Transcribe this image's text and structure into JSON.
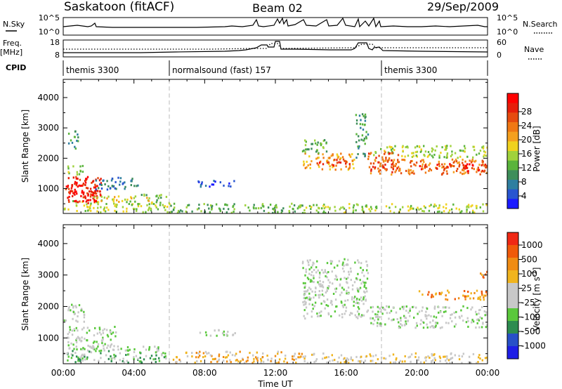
{
  "header": {
    "station": "Saskatoon (fitACF)",
    "beam": "Beam 02",
    "date": "29/Sep/2009"
  },
  "strips": {
    "nsky_label": "N.Sky",
    "nsky_ticks": [
      "10^5",
      "10^0"
    ],
    "nsearch_label": "N.Search",
    "nsearch_ticks": [
      "10^5",
      "10^0"
    ],
    "freq_label": "Freq.",
    "freq_unit": "[MHz]",
    "freq_ticks": [
      "18",
      "8"
    ],
    "nave_label": "Nave",
    "nave_ticks": [
      "60",
      "0"
    ],
    "cpid_label": "CPID",
    "cpid_segments": [
      {
        "label": "themis 3300",
        "start_hour": 0,
        "end_hour": 6
      },
      {
        "label": "normalsound (fast) 157",
        "start_hour": 6,
        "end_hour": 18
      },
      {
        "label": "themis 3300",
        "start_hour": 18,
        "end_hour": 24
      }
    ]
  },
  "chart_data": [
    {
      "type": "heatmap",
      "name": "power",
      "xlabel": "Time UT",
      "ylabel": "Slant Range [km]",
      "xlim": [
        0,
        24
      ],
      "ylim": [
        180,
        4600
      ],
      "yticks": [
        "1000",
        "2000",
        "3000",
        "4000"
      ],
      "colorbar_label": "Power [dB]",
      "colorbar_ticks": [
        "4",
        "8",
        "12",
        "16",
        "20",
        "24",
        "28"
      ],
      "colors": [
        "#1a1aff",
        "#2855d0",
        "#2f7fa0",
        "#3e8e5a",
        "#5ab43c",
        "#a0d23c",
        "#f0d21e",
        "#f5a01e",
        "#f07814",
        "#e64b0f",
        "#e61e0a",
        "#ff0000"
      ],
      "regions": [
        {
          "t": [
            0.0,
            6.0
          ],
          "r": [
            200,
            600
          ],
          "v": 5
        },
        {
          "t": [
            6.0,
            13.5
          ],
          "r": [
            180,
            500
          ],
          "v": 4
        },
        {
          "t": [
            13.5,
            24.0
          ],
          "r": [
            180,
            480
          ],
          "v": 5
        },
        {
          "t": [
            0.1,
            2.2
          ],
          "r": [
            500,
            1400
          ],
          "v": 10
        },
        {
          "t": [
            0.4,
            1.9
          ],
          "r": [
            550,
            1250
          ],
          "v": 11
        },
        {
          "t": [
            1.5,
            4.8
          ],
          "r": [
            550,
            730
          ],
          "v": 6
        },
        {
          "t": [
            4.0,
            5.8
          ],
          "r": [
            600,
            800
          ],
          "v": 4
        },
        {
          "t": [
            1.8,
            4.3
          ],
          "r": [
            950,
            1350
          ],
          "v": 2
        },
        {
          "t": [
            0.1,
            1.2
          ],
          "r": [
            1450,
            1750
          ],
          "v": 5
        },
        {
          "t": [
            0.2,
            0.8
          ],
          "r": [
            2300,
            2900
          ],
          "v": 3
        },
        {
          "t": [
            7.5,
            9.7
          ],
          "r": [
            1050,
            1250
          ],
          "v": 1
        },
        {
          "t": [
            13.5,
            16.5
          ],
          "r": [
            1600,
            2150
          ],
          "v": 7
        },
        {
          "t": [
            14.1,
            16.2
          ],
          "r": [
            1750,
            1950
          ],
          "v": 10
        },
        {
          "t": [
            13.5,
            15.0
          ],
          "r": [
            2150,
            2650
          ],
          "v": 4
        },
        {
          "t": [
            16.5,
            17.2
          ],
          "r": [
            2000,
            3450
          ],
          "v": 3
        },
        {
          "t": [
            17.3,
            24.0
          ],
          "r": [
            1450,
            1950
          ],
          "v": 8
        },
        {
          "t": [
            20.0,
            24.0
          ],
          "r": [
            1550,
            1800
          ],
          "v": 10
        },
        {
          "t": [
            17.5,
            24.0
          ],
          "r": [
            2000,
            2400
          ],
          "v": 5
        },
        {
          "t": [
            17.2,
            19.0
          ],
          "r": [
            1500,
            2200
          ],
          "v": 9
        }
      ]
    },
    {
      "type": "heatmap",
      "name": "velocity",
      "xlabel": "Time UT",
      "ylabel": "Slant Range [km]",
      "xlim": [
        0,
        24
      ],
      "ylim": [
        180,
        4600
      ],
      "xticks": [
        "00:00",
        "04:00",
        "08:00",
        "12:00",
        "16:00",
        "20:00",
        "00:00"
      ],
      "yticks": [
        "1000",
        "2000",
        "3000",
        "4000"
      ],
      "colorbar_label": "Velocity [m s^-1]",
      "colorbar_ticks": [
        "1000",
        "500",
        "100",
        "25",
        "-25",
        "-100",
        "-500",
        "-1000"
      ],
      "colors": [
        "#1e1ee6",
        "#2850c8",
        "#2d8c50",
        "#5ac83c",
        "#c8c8c8",
        "#c8c8c8",
        "#f0b41e",
        "#f08c14",
        "#f05a0a",
        "#f02814"
      ],
      "regions": [
        {
          "t": [
            0.0,
            6.0
          ],
          "r": [
            200,
            650
          ],
          "v": 3
        },
        {
          "t": [
            6.0,
            13.5
          ],
          "r": [
            180,
            550
          ],
          "v": 6
        },
        {
          "t": [
            13.5,
            24.0
          ],
          "r": [
            180,
            500
          ],
          "v": 5
        },
        {
          "t": [
            0.2,
            3.0
          ],
          "r": [
            650,
            1350
          ],
          "v": 4
        },
        {
          "t": [
            1.5,
            5.5
          ],
          "r": [
            600,
            750
          ],
          "v": 4
        },
        {
          "t": [
            0.0,
            1.2
          ],
          "r": [
            1500,
            2100
          ],
          "v": 4
        },
        {
          "t": [
            7.5,
            9.7
          ],
          "r": [
            1050,
            1250
          ],
          "v": 4
        },
        {
          "t": [
            13.5,
            17.2
          ],
          "r": [
            1600,
            3500
          ],
          "v": 4
        },
        {
          "t": [
            17.3,
            24.0
          ],
          "r": [
            1300,
            2000
          ],
          "v": 4
        },
        {
          "t": [
            20.0,
            24.0
          ],
          "r": [
            2200,
            2500
          ],
          "v": 7
        },
        {
          "t": [
            23.5,
            24.0
          ],
          "r": [
            2900,
            3200
          ],
          "v": 7
        }
      ]
    }
  ]
}
